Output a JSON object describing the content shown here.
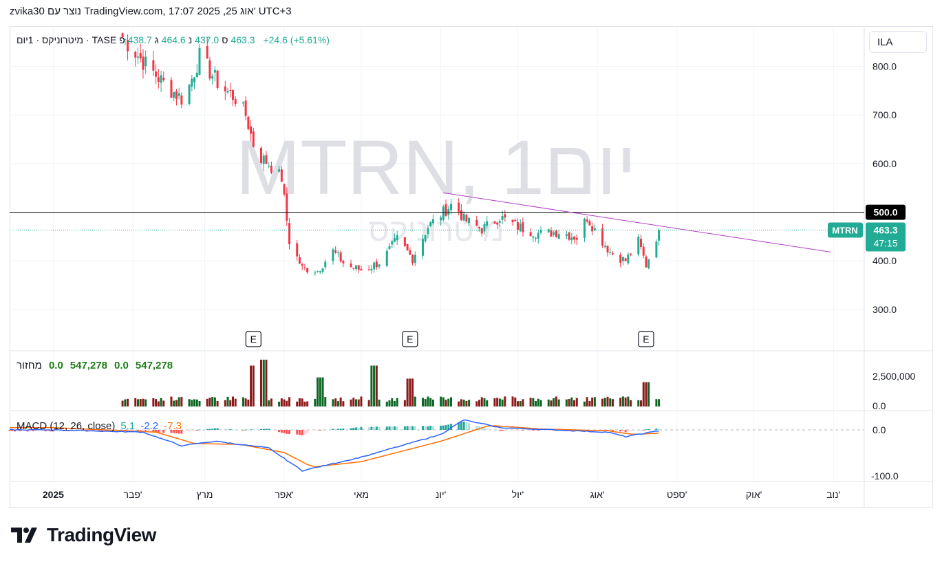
{
  "header": {
    "text": "zvika30 נוצר עם TradingView.com, 17:07 2025 ,25 אוג' UTC+3"
  },
  "legend": {
    "symbol": "TASE",
    "name_interval": "מיטרוניקס · 1יום ·",
    "open_label": "פ",
    "open": "438.7",
    "high_label": "ג",
    "high": "464.6",
    "low_label": "נ",
    "low": "437.0",
    "close_label": "ס",
    "close": "463.3",
    "change": "+24.6 (+5.61%)"
  },
  "currency_button": "ILA",
  "watermark": {
    "main": "MTRN, 1יום",
    "sub": "מיטרוניקס"
  },
  "volume_legend": {
    "title": "מחזור",
    "v1": "0.0",
    "v2": "547,278",
    "v3": "0.0",
    "v4": "547,278"
  },
  "macd_legend": {
    "title": "MACD (12, 26, close)",
    "hist": "5.1",
    "macd": "-2.2",
    "signal": "-7.3"
  },
  "price_labels": {
    "level": "500.0",
    "symbol_tag": "MTRN",
    "last": "463.3",
    "countdown": "47:15"
  },
  "earnings_marker": "E",
  "brand": "TradingView",
  "colors": {
    "up": "#22ab94",
    "down": "#f23645",
    "trendline": "#b03cc6",
    "macd": "#2962ff",
    "signal": "#ff6d00"
  },
  "chart_data": {
    "type": "candlestick",
    "x_axis_labels": [
      "2025",
      "פבר'",
      "מרץ",
      "אפר'",
      "מאי",
      "יונ'",
      "יול'",
      "אוג'",
      "ספט'",
      "אוק'",
      "נוב'"
    ],
    "y_axis_ticks": [
      "800.0",
      "700.0",
      "600.0",
      "500.0",
      "400.0",
      "300.0"
    ],
    "ylim": [
      215,
      880
    ],
    "volume_ticks": [
      "2,500,000",
      "0.0"
    ],
    "macd_ticks": [
      "0.0",
      "-100.0"
    ],
    "horizontal_level": 500,
    "trendline": {
      "from": [
        "2025-06-02",
        540
      ],
      "to": [
        "2025-10-31",
        418
      ]
    },
    "earnings_dates": [
      "2025-03-20",
      "2025-05-20",
      "2025-08-20"
    ],
    "price_anchors": [
      [
        "2025-01-28",
        860
      ],
      [
        "2025-02-05",
        810
      ],
      [
        "2025-02-14",
        760
      ],
      [
        "2025-02-21",
        730
      ],
      [
        "2025-02-27",
        820
      ],
      [
        "2025-03-07",
        760
      ],
      [
        "2025-03-13",
        735
      ],
      [
        "2025-03-17",
        700
      ],
      [
        "2025-03-21",
        620
      ],
      [
        "2025-03-26",
        600
      ],
      [
        "2025-03-31",
        570
      ],
      [
        "2025-04-03",
        440
      ],
      [
        "2025-04-08",
        385
      ],
      [
        "2025-04-14",
        380
      ],
      [
        "2025-04-20",
        420
      ],
      [
        "2025-04-25",
        390
      ],
      [
        "2025-05-02",
        380
      ],
      [
        "2025-05-09",
        400
      ],
      [
        "2025-05-15",
        445
      ],
      [
        "2025-05-21",
        405
      ],
      [
        "2025-05-27",
        470
      ],
      [
        "2025-06-02",
        500
      ],
      [
        "2025-06-06",
        520
      ],
      [
        "2025-06-10",
        485
      ],
      [
        "2025-06-17",
        465
      ],
      [
        "2025-06-24",
        490
      ],
      [
        "2025-07-01",
        470
      ],
      [
        "2025-07-10",
        455
      ],
      [
        "2025-07-17",
        460
      ],
      [
        "2025-07-24",
        448
      ],
      [
        "2025-07-28",
        490
      ],
      [
        "2025-08-01",
        455
      ],
      [
        "2025-08-06",
        418
      ],
      [
        "2025-08-12",
        400
      ],
      [
        "2025-08-17",
        440
      ],
      [
        "2025-08-20",
        392
      ],
      [
        "2025-08-25",
        463.3
      ]
    ],
    "volume_spikes": [
      [
        "2025-03-20",
        3400000
      ],
      [
        "2025-03-24",
        3900000
      ],
      [
        "2025-04-15",
        2400000
      ],
      [
        "2025-05-06",
        3400000
      ],
      [
        "2025-05-20",
        2300000
      ],
      [
        "2025-08-20",
        2000000
      ]
    ],
    "macd_anchors": [
      [
        "2025-01-01",
        0
      ],
      [
        "2025-02-05",
        -5
      ],
      [
        "2025-02-20",
        -35
      ],
      [
        "2025-03-05",
        -25
      ],
      [
        "2025-03-26",
        -40
      ],
      [
        "2025-04-08",
        -90
      ],
      [
        "2025-05-01",
        -60
      ],
      [
        "2025-06-01",
        -10
      ],
      [
        "2025-06-10",
        22
      ],
      [
        "2025-06-24",
        5
      ],
      [
        "2025-07-15",
        0
      ],
      [
        "2025-08-05",
        -5
      ],
      [
        "2025-08-12",
        -15
      ],
      [
        "2025-08-25",
        -2.2
      ]
    ],
    "signal_anchors": [
      [
        "2025-01-01",
        5
      ],
      [
        "2025-02-10",
        -5
      ],
      [
        "2025-02-25",
        -30
      ],
      [
        "2025-03-15",
        -32
      ],
      [
        "2025-04-01",
        -50
      ],
      [
        "2025-04-12",
        -82
      ],
      [
        "2025-05-01",
        -70
      ],
      [
        "2025-06-01",
        -25
      ],
      [
        "2025-06-20",
        10
      ],
      [
        "2025-07-10",
        2
      ],
      [
        "2025-08-05",
        -2
      ],
      [
        "2025-08-15",
        -10
      ],
      [
        "2025-08-25",
        -7.3
      ]
    ]
  }
}
